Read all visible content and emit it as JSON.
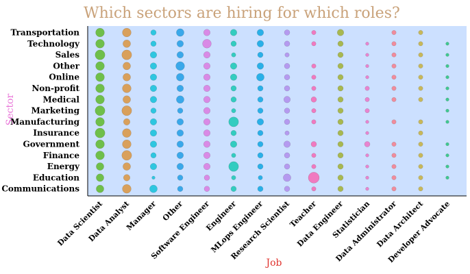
{
  "chart_data": {
    "type": "scatter",
    "title": "Which sectors are hiring for which roles?",
    "xlabel": "Job",
    "ylabel": "Sector",
    "categories_x": [
      "Data Scientist",
      "Data Analyst",
      "Manager",
      "Other",
      "Software Engineer",
      "Engineer",
      "MLops Engineer",
      "Research Scientist",
      "Teacher",
      "Data Engineer",
      "Statistician",
      "Data Administrator",
      "Data Architect",
      "Developer Advocate"
    ],
    "categories_y": [
      "Transportation",
      "Technology",
      "Sales",
      "Other",
      "Online",
      "Non-profit",
      "Medical",
      "Marketing",
      "Manufacturing",
      "Insurance",
      "Government",
      "Finance",
      "Energy",
      "Education",
      "Communications"
    ],
    "colors": [
      "#6fbf4a",
      "#d9a05b",
      "#2ec6e0",
      "#3aa8ea",
      "#d98ae6",
      "#33ccc0",
      "#2ab0e8",
      "#b59af0",
      "#f07ac0",
      "#a8b850",
      "#e884d0",
      "#f08c9c",
      "#c8b85a",
      "#40c890"
    ],
    "plot_background": "#cce0ff",
    "grid": false,
    "legend": "none",
    "sizes": [
      [
        8,
        8,
        5,
        7,
        6,
        6,
        6,
        5,
        4,
        6,
        0,
        4,
        4,
        0
      ],
      [
        8,
        7,
        5,
        6,
        8,
        5,
        6,
        5,
        4,
        5,
        3,
        4,
        4,
        3
      ],
      [
        9,
        9,
        6,
        6,
        6,
        4,
        5,
        4,
        0,
        5,
        3,
        4,
        4,
        3
      ],
      [
        8,
        7,
        6,
        8,
        6,
        6,
        6,
        5,
        4,
        5,
        3,
        4,
        4,
        3
      ],
      [
        8,
        7,
        6,
        7,
        6,
        6,
        7,
        5,
        4,
        5,
        3,
        4,
        4,
        3
      ],
      [
        8,
        8,
        6,
        6,
        6,
        5,
        5,
        5,
        4,
        5,
        4,
        4,
        4,
        3
      ],
      [
        8,
        7,
        6,
        7,
        6,
        5,
        5,
        6,
        5,
        5,
        4,
        4,
        4,
        3
      ],
      [
        9,
        9,
        5,
        5,
        6,
        4,
        5,
        5,
        4,
        5,
        4,
        0,
        0,
        3
      ],
      [
        8,
        6,
        6,
        6,
        6,
        9,
        6,
        5,
        4,
        5,
        3,
        4,
        4,
        3
      ],
      [
        9,
        8,
        6,
        6,
        6,
        5,
        5,
        4,
        0,
        5,
        3,
        0,
        4,
        0
      ],
      [
        8,
        8,
        6,
        6,
        6,
        6,
        5,
        6,
        5,
        5,
        5,
        4,
        4,
        3
      ],
      [
        8,
        9,
        5,
        6,
        6,
        4,
        5,
        5,
        4,
        5,
        3,
        4,
        4,
        3
      ],
      [
        7,
        7,
        6,
        6,
        6,
        9,
        5,
        5,
        4,
        5,
        3,
        4,
        4,
        3
      ],
      [
        7,
        6,
        3,
        5,
        5,
        4,
        4,
        7,
        10,
        5,
        3,
        4,
        4,
        3
      ],
      [
        7,
        8,
        7,
        5,
        5,
        5,
        5,
        5,
        4,
        5,
        3,
        4,
        4,
        0
      ]
    ]
  }
}
